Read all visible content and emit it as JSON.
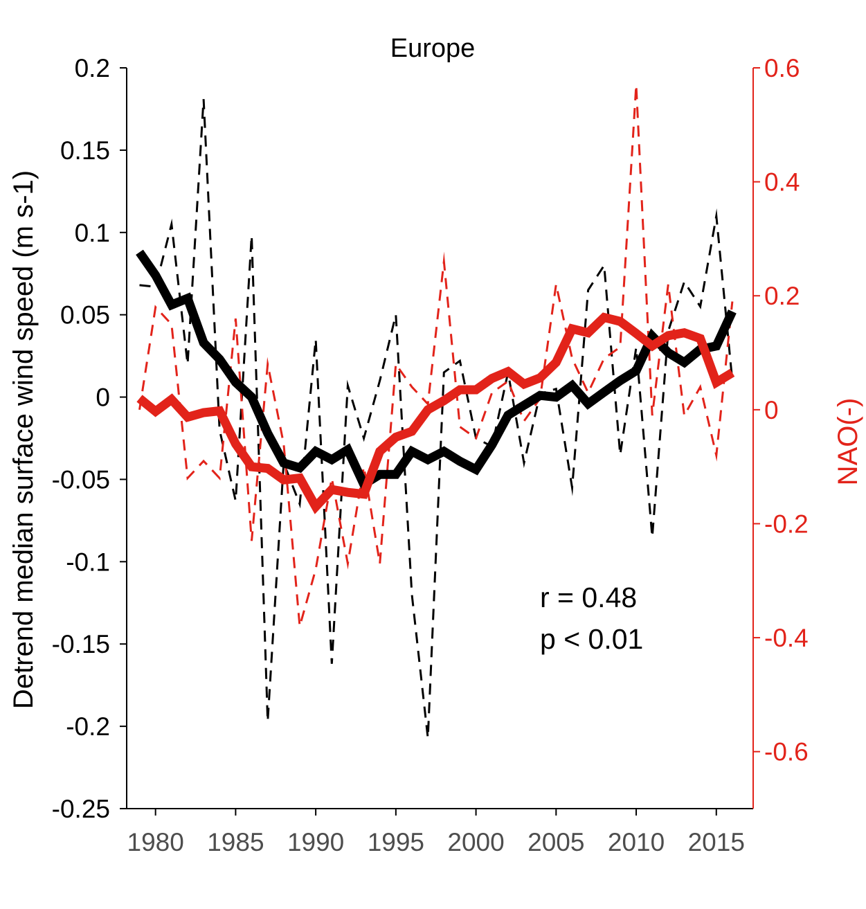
{
  "chart_data": {
    "type": "line",
    "title": "Europe",
    "xlabel": "",
    "ylabel_left": "Detrend median surface wind speed (m s-1)",
    "ylabel_right": "NAO(-)",
    "xlim": [
      1978.2,
      2017.3
    ],
    "ylim_left": [
      -0.25,
      0.2
    ],
    "ylim_right": [
      -0.7,
      0.6
    ],
    "x_ticks": [
      1980,
      1985,
      1990,
      1995,
      2000,
      2005,
      2010,
      2015
    ],
    "x_tick_labels": [
      "1980",
      "1985",
      "1990",
      "1995",
      "2000",
      "2005",
      "2010",
      "2015"
    ],
    "y_left_ticks": [
      0.2,
      0.15,
      0.1,
      0.05,
      0,
      -0.05,
      -0.1,
      -0.15,
      -0.2,
      -0.25
    ],
    "y_left_tick_labels": [
      "0.2",
      "0.15",
      "0.1",
      "0.05",
      "0",
      "-0.05",
      "-0.1",
      "-0.15",
      "-0.2",
      "-0.25"
    ],
    "y_right_ticks": [
      0.6,
      0.4,
      0.2,
      0,
      -0.2,
      -0.4,
      -0.6
    ],
    "y_right_tick_labels": [
      "0.6",
      "0.4",
      "0.2",
      "0",
      "-0.2",
      "-0.4",
      "-0.6"
    ],
    "colors": {
      "wind": "#000000",
      "nao": "#e2231a",
      "right_axis": "#e2231a",
      "x_ticks": "#4d4d4d"
    },
    "series": [
      {
        "axis": "left",
        "style": "dashed",
        "color": "#000000",
        "x": [
          1979,
          1980,
          1981,
          1982,
          1983,
          1984,
          1985,
          1986,
          1987,
          1988,
          1989,
          1990,
          1991,
          1992,
          1993,
          1994,
          1995,
          1996,
          1997,
          1998,
          1999,
          2000,
          2001,
          2002,
          2003,
          2004,
          2005,
          2006,
          2007,
          2008,
          2009,
          2010,
          2011,
          2012,
          2013,
          2014,
          2015,
          2016
        ],
        "y": [
          0.068,
          0.067,
          0.105,
          0.02,
          0.181,
          -0.02,
          -0.063,
          0.098,
          -0.197,
          -0.04,
          -0.065,
          0.035,
          -0.162,
          0.007,
          -0.025,
          0.01,
          0.05,
          -0.12,
          -0.207,
          0.015,
          0.022,
          -0.025,
          -0.03,
          0.015,
          -0.04,
          0.002,
          0.005,
          -0.055,
          0.065,
          0.08,
          -0.035,
          0.03,
          -0.085,
          0.04,
          0.07,
          0.055,
          0.11,
          0.01
        ]
      },
      {
        "axis": "right",
        "style": "dashed",
        "color": "#e2231a",
        "x": [
          1979,
          1980,
          1981,
          1982,
          1983,
          1984,
          1985,
          1986,
          1987,
          1988,
          1989,
          1990,
          1991,
          1992,
          1993,
          1994,
          1995,
          1996,
          1997,
          1998,
          1999,
          2000,
          2001,
          2002,
          2003,
          2004,
          2005,
          2006,
          2007,
          2008,
          2009,
          2010,
          2011,
          2012,
          2013,
          2014,
          2015,
          2016
        ],
        "y": [
          0.0,
          0.18,
          0.15,
          -0.12,
          -0.09,
          -0.12,
          0.16,
          -0.23,
          0.08,
          -0.06,
          -0.38,
          -0.28,
          -0.12,
          -0.27,
          -0.1,
          -0.27,
          0.08,
          0.04,
          0.01,
          0.26,
          -0.03,
          -0.05,
          0.03,
          0.05,
          -0.02,
          0.02,
          0.22,
          0.09,
          0.03,
          0.09,
          0.11,
          0.57,
          -0.01,
          0.22,
          -0.01,
          0.04,
          -0.08,
          0.19
        ]
      },
      {
        "axis": "left",
        "style": "solid-thick",
        "color": "#000000",
        "x": [
          1979,
          1980,
          1981,
          1982,
          1983,
          1984,
          1985,
          1986,
          1987,
          1988,
          1989,
          1990,
          1991,
          1992,
          1993,
          1994,
          1995,
          1996,
          1997,
          1998,
          1999,
          2000,
          2001,
          2002,
          2003,
          2004,
          2005,
          2006,
          2007,
          2008,
          2009,
          2010,
          2011,
          2012,
          2013,
          2014,
          2015,
          2016
        ],
        "y": [
          0.088,
          0.074,
          0.056,
          0.06,
          0.033,
          0.023,
          0.009,
          0.0,
          -0.022,
          -0.04,
          -0.043,
          -0.033,
          -0.038,
          -0.032,
          -0.053,
          -0.047,
          -0.047,
          -0.033,
          -0.038,
          -0.033,
          -0.039,
          -0.044,
          -0.029,
          -0.011,
          -0.005,
          0.001,
          0.0,
          0.007,
          -0.004,
          0.003,
          0.01,
          0.016,
          0.037,
          0.027,
          0.021,
          0.029,
          0.031,
          0.052
        ]
      },
      {
        "axis": "right",
        "style": "solid-thick",
        "color": "#e2231a",
        "x": [
          1979,
          1980,
          1981,
          1982,
          1983,
          1984,
          1985,
          1986,
          1987,
          1988,
          1989,
          1990,
          1991,
          1992,
          1993,
          1994,
          1995,
          1996,
          1997,
          1998,
          1999,
          2000,
          2001,
          2002,
          2003,
          2004,
          2005,
          2006,
          2007,
          2008,
          2009,
          2010,
          2011,
          2012,
          2013,
          2014,
          2015,
          2016
        ],
        "y": [
          0.02,
          -0.003,
          0.018,
          -0.013,
          -0.005,
          -0.002,
          -0.06,
          -0.1,
          -0.103,
          -0.123,
          -0.12,
          -0.17,
          -0.14,
          -0.145,
          -0.148,
          -0.073,
          -0.048,
          -0.038,
          0.0,
          0.016,
          0.035,
          0.035,
          0.055,
          0.067,
          0.045,
          0.056,
          0.083,
          0.142,
          0.135,
          0.162,
          0.155,
          0.134,
          0.112,
          0.13,
          0.135,
          0.125,
          0.048,
          0.065
        ]
      }
    ],
    "annotations": [
      "r = 0.48",
      "p < 0.01"
    ],
    "grid": false,
    "legend": "none"
  }
}
